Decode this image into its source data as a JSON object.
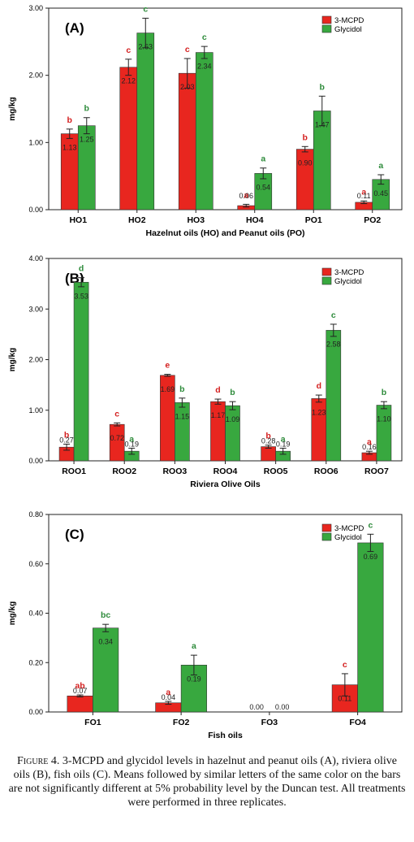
{
  "colors": {
    "mcpd": "#e8261f",
    "glycidol": "#38a83f",
    "letter_mcpd": "#d42020",
    "letter_glycidol": "#2e8b3b"
  },
  "chart_data": [
    {
      "type": "bar",
      "panel_label": "(A)",
      "categories": [
        "HO1",
        "HO2",
        "HO3",
        "HO4",
        "PO1",
        "PO2"
      ],
      "series": [
        {
          "name": "3-MCPD",
          "values": [
            1.13,
            2.12,
            2.03,
            0.06,
            0.9,
            0.11
          ],
          "errors": [
            0.07,
            0.12,
            0.22,
            0.02,
            0.04,
            0.02
          ],
          "letters": [
            "b",
            "c",
            "c",
            "a",
            "b",
            "a"
          ],
          "labels": [
            "1.13",
            "2.12",
            "2.03",
            "0.06",
            "0.90",
            "0.11"
          ]
        },
        {
          "name": "Glycidol",
          "values": [
            1.25,
            2.63,
            2.34,
            0.54,
            1.47,
            0.45
          ],
          "errors": [
            0.12,
            0.22,
            0.09,
            0.08,
            0.22,
            0.07
          ],
          "letters": [
            "b",
            "c",
            "c",
            "a",
            "b",
            "a"
          ],
          "labels": [
            "1.25",
            "2.63",
            "2.34",
            "0.54",
            "1.47",
            "0.45"
          ]
        }
      ],
      "xlabel": "Hazelnut oils (HO) and Peanut oils (PO)",
      "ylabel": "mg/kg",
      "ylim": [
        0,
        3.0
      ],
      "yticks": [
        "0.00",
        "1.00",
        "2.00",
        "3.00"
      ],
      "legend": "top-right",
      "grid": false
    },
    {
      "type": "bar",
      "panel_label": "(B)",
      "categories": [
        "ROO1",
        "ROO2",
        "ROO3",
        "ROO4",
        "ROO5",
        "ROO6",
        "ROO7"
      ],
      "series": [
        {
          "name": "3-MCPD",
          "values": [
            0.27,
            0.72,
            1.69,
            1.17,
            0.28,
            1.23,
            0.16
          ],
          "errors": [
            0.06,
            0.03,
            0.02,
            0.05,
            0.03,
            0.07,
            0.03
          ],
          "letters": [
            "b",
            "c",
            "e",
            "d",
            "b",
            "d",
            "a"
          ],
          "labels": [
            "0.27",
            "0.72",
            "1.69",
            "1.17",
            "0.28",
            "1.23",
            "0.16"
          ]
        },
        {
          "name": "Glycidol",
          "values": [
            3.53,
            0.19,
            1.15,
            1.09,
            0.19,
            2.58,
            1.1
          ],
          "errors": [
            0.09,
            0.06,
            0.09,
            0.08,
            0.06,
            0.12,
            0.07
          ],
          "letters": [
            "d",
            "a",
            "b",
            "b",
            "a",
            "c",
            "b"
          ],
          "labels": [
            "3.53",
            "0.19",
            "1.15",
            "1.09",
            "0.19",
            "2.58",
            "1.10"
          ]
        }
      ],
      "xlabel": "Riviera Olive Oils",
      "ylabel": "mg/kg",
      "ylim": [
        0,
        4.0
      ],
      "yticks": [
        "0.00",
        "1.00",
        "2.00",
        "3.00",
        "4.00"
      ],
      "legend": "top-right",
      "grid": false
    },
    {
      "type": "bar",
      "panel_label": "(C)",
      "categories": [
        "FO1",
        "FO2",
        "FO3",
        "FO4"
      ],
      "series": [
        {
          "name": "3-MCPD",
          "values": [
            0.065,
            0.037,
            0.0,
            0.11
          ],
          "errors": [
            0.004,
            0.006,
            0.0,
            0.045
          ],
          "letters": [
            "ab",
            "a",
            "",
            "c"
          ],
          "labels": [
            "0.07",
            "0.04",
            "0.00",
            "0.11"
          ]
        },
        {
          "name": "Glycidol",
          "values": [
            0.34,
            0.19,
            0.0,
            0.685
          ],
          "errors": [
            0.015,
            0.04,
            0.0,
            0.035
          ],
          "letters": [
            "bc",
            "a",
            "",
            "c"
          ],
          "labels": [
            "0.34",
            "0.19",
            "0.00",
            "0.69"
          ]
        }
      ],
      "xlabel": "Fish oils",
      "ylabel": "mg/kg",
      "ylim": [
        0,
        0.8
      ],
      "yticks": [
        "0.00",
        "0.20",
        "0.40",
        "0.60",
        "0.80"
      ],
      "legend": "top-right",
      "grid": false
    }
  ],
  "caption": {
    "lead": "Figure 4.",
    "text": " 3-MCPD and glycidol levels in hazelnut and peanut oils (A), riviera olive oils (B), fish oils (C). Means followed by similar letters of the same color on the bars are not significantly different at 5% probability level by the Duncan test. All treatments were performed in three replicates."
  }
}
